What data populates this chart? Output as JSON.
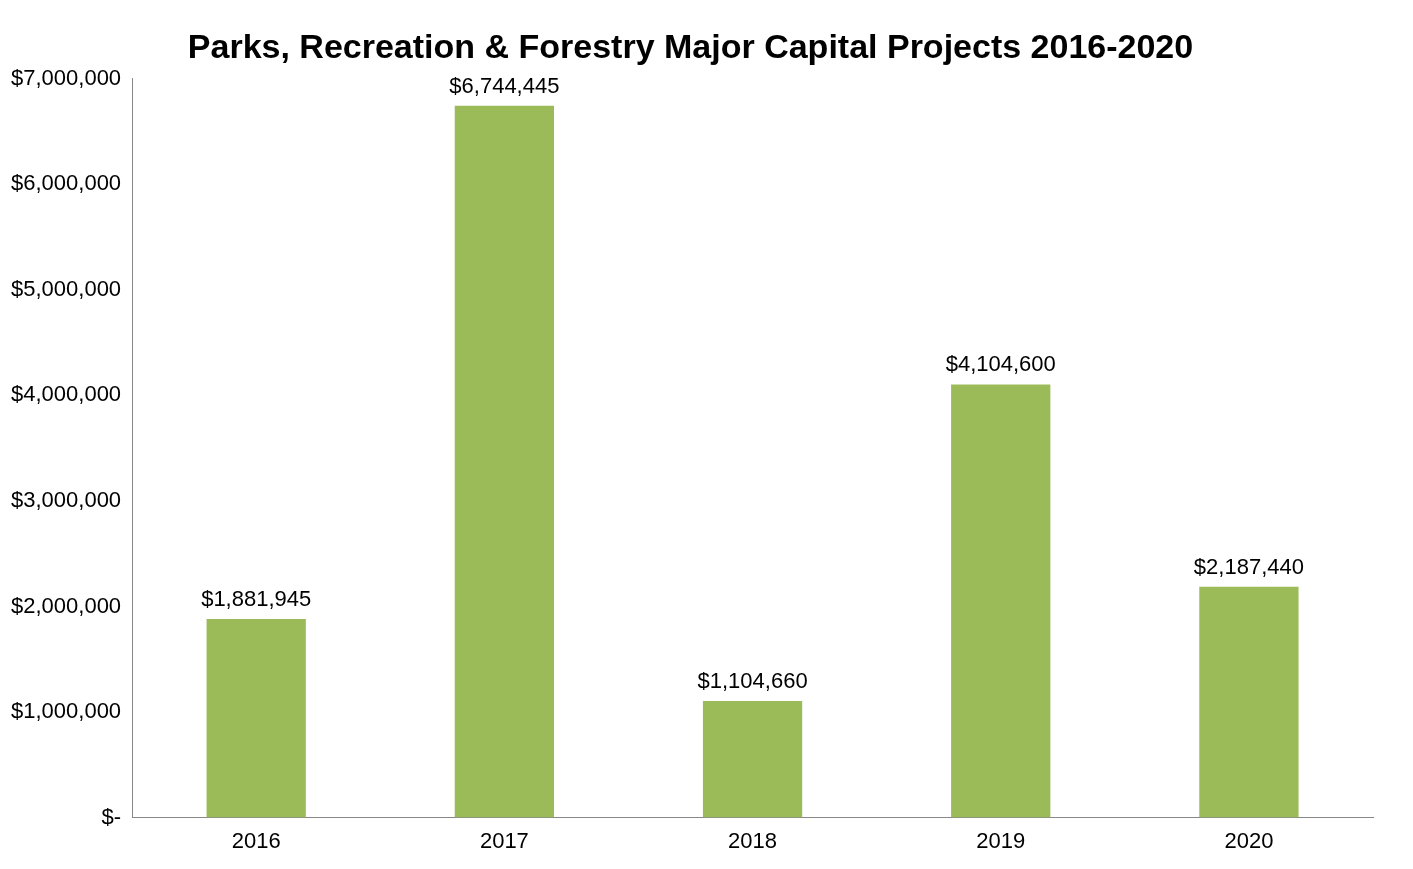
{
  "chart_data": {
    "type": "bar",
    "title": "Parks, Recreation & Forestry Major Capital Projects 2016-2020",
    "categories": [
      "2016",
      "2017",
      "2018",
      "2019",
      "2020"
    ],
    "values": [
      1881945,
      6744445,
      1104660,
      4104600,
      2187440
    ],
    "value_labels": [
      "$1,881,945",
      "$6,744,445",
      "$1,104,660",
      "$4,104,600",
      "$2,187,440"
    ],
    "color": "#9bbb59",
    "ylim": [
      0,
      7000000
    ],
    "yticks": [
      {
        "value": 0,
        "label": "$-"
      },
      {
        "value": 1000000,
        "label": "$1,000,000"
      },
      {
        "value": 2000000,
        "label": "$2,000,000"
      },
      {
        "value": 3000000,
        "label": "$3,000,000"
      },
      {
        "value": 4000000,
        "label": "$4,000,000"
      },
      {
        "value": 5000000,
        "label": "$5,000,000"
      },
      {
        "value": 6000000,
        "label": "$6,000,000"
      },
      {
        "value": 7000000,
        "label": "$7,000,000"
      }
    ],
    "grid": false
  }
}
